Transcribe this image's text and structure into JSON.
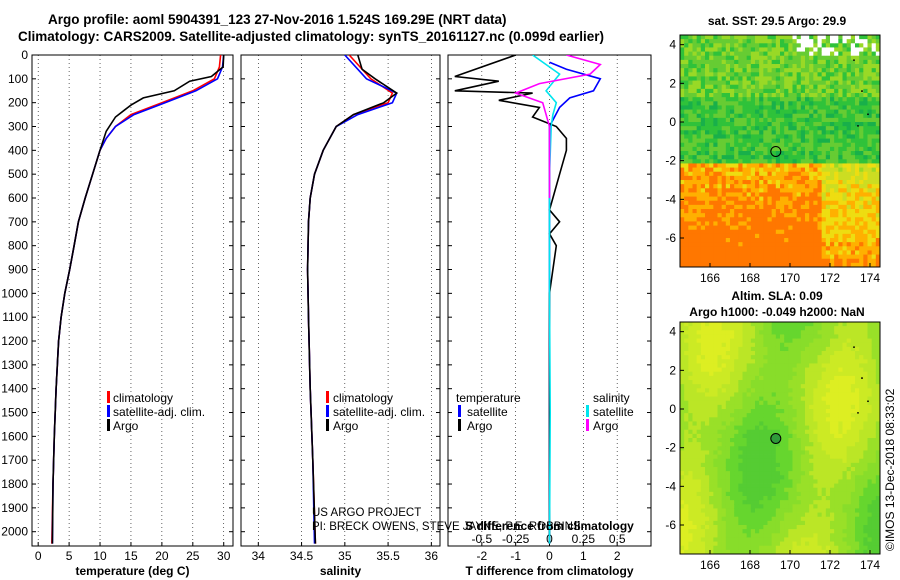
{
  "header": {
    "title_line1": "Argo profile: aoml 5904391_123 27-Nov-2016 1.524S 169.29E (NRT data)",
    "title_line2": "Climatology: CARS2009. Satellite-adjusted climatology: synTS_20161127.nc (0.099d earlier)"
  },
  "colors": {
    "climatology": "#ff0000",
    "satellite": "#0000ff",
    "argo": "#000000",
    "argo_salinity": "#ff00ff",
    "satellite_salinity": "#00e5ee"
  },
  "chart_data": [
    {
      "type": "line",
      "name": "temperature",
      "xlabel": "temperature (deg C)",
      "ylabel": "",
      "xlim": [
        -1,
        31.5
      ],
      "ylim": [
        2060,
        0
      ],
      "xticks": [
        0,
        5,
        10,
        15,
        20,
        25,
        30
      ],
      "xtick_labels": [
        "0",
        "5",
        "10",
        "15",
        "20",
        "25",
        "30"
      ],
      "yticks": [
        0,
        100,
        200,
        300,
        400,
        500,
        600,
        700,
        800,
        900,
        1000,
        1100,
        1200,
        1300,
        1400,
        1500,
        1600,
        1700,
        1800,
        1900,
        2000
      ],
      "grid": "vertical",
      "legend": [
        "climatology",
        "satellite-adj. clim.",
        "Argo"
      ],
      "legend_position": "lower-right",
      "series": [
        {
          "name": "climatology",
          "color": "#ff0000",
          "x": [
            29.5,
            29.3,
            28.5,
            25,
            20,
            15,
            12.5,
            11,
            10,
            8.8,
            7.6,
            6.5,
            5.8,
            5.1,
            4.3,
            3.7,
            3.3,
            2.9,
            2.6,
            2.4,
            2.2
          ],
          "y": [
            0,
            50,
            100,
            150,
            200,
            250,
            300,
            350,
            400,
            500,
            600,
            700,
            800,
            900,
            1000,
            1100,
            1200,
            1400,
            1600,
            1800,
            2050
          ]
        },
        {
          "name": "satellite-adj. clim.",
          "color": "#0000ff",
          "x": [
            30,
            29.8,
            29,
            25.5,
            20.5,
            15.5,
            12.5,
            11,
            10,
            8.8,
            7.6,
            6.5,
            5.8,
            5.1,
            4.3,
            3.7,
            3.3,
            2.9,
            2.6,
            2.4,
            2.3
          ],
          "y": [
            0,
            50,
            100,
            150,
            200,
            250,
            300,
            350,
            400,
            500,
            600,
            700,
            800,
            900,
            1000,
            1100,
            1200,
            1400,
            1600,
            1800,
            2050
          ]
        },
        {
          "name": "Argo",
          "color": "#000000",
          "x": [
            30,
            29.9,
            28,
            24.5,
            22,
            17,
            15,
            14,
            12.5,
            11,
            10,
            8.8,
            7.6,
            6.5,
            5.8,
            5.1,
            4.3,
            3.7,
            3.3,
            2.9,
            2.6,
            2.4,
            2.3
          ],
          "y": [
            0,
            50,
            90,
            110,
            150,
            180,
            210,
            230,
            260,
            320,
            400,
            500,
            600,
            700,
            800,
            900,
            1000,
            1100,
            1200,
            1400,
            1600,
            1800,
            2050
          ]
        }
      ]
    },
    {
      "type": "line",
      "name": "salinity",
      "xlabel": "salinity",
      "ylabel": "",
      "xlim": [
        33.8,
        36.1
      ],
      "ylim": [
        2060,
        0
      ],
      "xticks": [
        34,
        34.5,
        35,
        35.5,
        36
      ],
      "xtick_labels": [
        "34",
        "34.5",
        "35",
        "35.5",
        "36"
      ],
      "grid": "vertical",
      "legend": [
        "climatology",
        "satellite-adj. clim.",
        "Argo"
      ],
      "legend_position": "lower-right",
      "series": [
        {
          "name": "climatology",
          "color": "#ff0000",
          "x": [
            35.05,
            35.3,
            35.55,
            35.5,
            35.1,
            34.9,
            34.75,
            34.65,
            34.6,
            34.58,
            34.57,
            34.58,
            34.6,
            34.63,
            34.66
          ],
          "y": [
            0,
            100,
            160,
            200,
            250,
            300,
            400,
            500,
            600,
            700,
            900,
            1100,
            1400,
            1700,
            2050
          ]
        },
        {
          "name": "satellite-adj. clim.",
          "color": "#0000ff",
          "x": [
            35,
            35.25,
            35.6,
            35.55,
            35.15,
            34.9,
            34.75,
            34.65,
            34.6,
            34.58,
            34.57,
            34.58,
            34.6,
            34.63,
            34.65
          ],
          "y": [
            0,
            100,
            160,
            200,
            250,
            300,
            400,
            500,
            600,
            700,
            900,
            1100,
            1400,
            1700,
            2050
          ]
        },
        {
          "name": "Argo",
          "color": "#000000",
          "x": [
            35.15,
            35.2,
            35.35,
            35.6,
            35.45,
            35.1,
            34.9,
            34.75,
            34.65,
            34.6,
            34.58,
            34.57,
            34.58,
            34.6,
            34.63,
            34.66
          ],
          "y": [
            0,
            60,
            100,
            160,
            200,
            250,
            300,
            400,
            500,
            600,
            700,
            900,
            1100,
            1400,
            1700,
            2050
          ]
        }
      ],
      "annotations": [
        "US ARGO PROJECT",
        "PI: BRECK OWENS, STEVE JAYNE, P.E. ROBBINS"
      ]
    },
    {
      "type": "line",
      "name": "differences",
      "xlabel": "T difference from climatology",
      "top_label": "S difference from climatology",
      "xlim": [
        -3,
        3
      ],
      "ylim": [
        2060,
        0
      ],
      "xticks": [
        -2,
        -1,
        0,
        1,
        2
      ],
      "xtick_labels": [
        "-2",
        "-1",
        "0",
        "1",
        "2"
      ],
      "top_ticks": [
        -0.5,
        -0.25,
        0,
        0.25,
        0.5
      ],
      "top_tick_labels": [
        "-0.5",
        "-0.25",
        "0",
        "0.25",
        "0.5"
      ],
      "grid": "vertical",
      "legend_groups": {
        "temperature": [
          "satellite",
          "Argo"
        ],
        "salinity": [
          "satellite",
          "Argo"
        ]
      },
      "series": [
        {
          "name": "temperature satellite",
          "color": "#0000ff",
          "x": [
            0,
            0.5,
            1.5,
            1.3,
            0.6,
            0.3,
            0,
            0,
            0,
            0,
            0
          ],
          "y": [
            30,
            60,
            100,
            150,
            180,
            220,
            300,
            500,
            1000,
            1500,
            2050
          ]
        },
        {
          "name": "temperature Argo",
          "color": "#000000",
          "x": [
            -1,
            -2.8,
            -1.5,
            -2.8,
            -0.5,
            -1.5,
            -0.3,
            -0.5,
            0.2,
            0.5,
            0.5,
            0.3,
            0.1,
            0,
            0.3,
            0,
            0.2,
            0,
            0,
            0
          ],
          "y": [
            0,
            90,
            110,
            150,
            160,
            190,
            220,
            260,
            300,
            350,
            400,
            500,
            600,
            650,
            700,
            750,
            800,
            1000,
            1500,
            2050
          ]
        },
        {
          "name": "salinity satellite",
          "color": "#00e5ee",
          "x": [
            -0.5,
            0.3,
            -0.1,
            0.2,
            0.1,
            0.05,
            0,
            0,
            0.02,
            0
          ],
          "y": [
            0,
            80,
            150,
            200,
            250,
            300,
            500,
            1000,
            1500,
            2050
          ]
        },
        {
          "name": "salinity Argo",
          "color": "#ff00ff",
          "x": [
            0.5,
            1.5,
            1.2,
            -0.3,
            -1,
            -0.2,
            0,
            0
          ],
          "y": [
            0,
            40,
            80,
            120,
            160,
            200,
            300,
            600
          ]
        }
      ]
    },
    {
      "type": "heatmap",
      "name": "sst-map",
      "title": "sat. SST: 29.5 Argo: 29.9",
      "xlim": [
        164.5,
        174.5
      ],
      "ylim": [
        -7.5,
        4.5
      ],
      "xticks": [
        166,
        168,
        170,
        172,
        174
      ],
      "xtick_labels": [
        "166",
        "168",
        "170",
        "172",
        "174"
      ],
      "yticks": [
        4,
        2,
        0,
        -2,
        -4,
        -6
      ],
      "ytick_labels": [
        "4",
        "2",
        "0",
        "-2",
        "-4",
        "-6"
      ],
      "marker": {
        "lon": 169.29,
        "lat": -1.524
      }
    },
    {
      "type": "heatmap",
      "name": "sla-map",
      "title": "Altim. SLA: 0.09",
      "subtitle": "Argo h1000: -0.049 h2000: NaN",
      "xlim": [
        164.5,
        174.5
      ],
      "ylim": [
        -7.5,
        4.5
      ],
      "xticks": [
        166,
        168,
        170,
        172,
        174
      ],
      "xtick_labels": [
        "166",
        "168",
        "170",
        "172",
        "174"
      ],
      "yticks": [
        4,
        2,
        0,
        -2,
        -4,
        -6
      ],
      "ytick_labels": [
        "4",
        "2",
        "0",
        "-2",
        "-4",
        "-6"
      ],
      "marker": {
        "lon": 169.29,
        "lat": -1.524
      }
    }
  ],
  "legend": {
    "climatology": "climatology",
    "satellite_adj": "satellite-adj. clim.",
    "argo": "Argo",
    "temperature_heading": "temperature",
    "salinity_heading": "salinity",
    "satellite": "satellite"
  },
  "credit": "©IMOS 13-Dec-2018 08:33:02"
}
